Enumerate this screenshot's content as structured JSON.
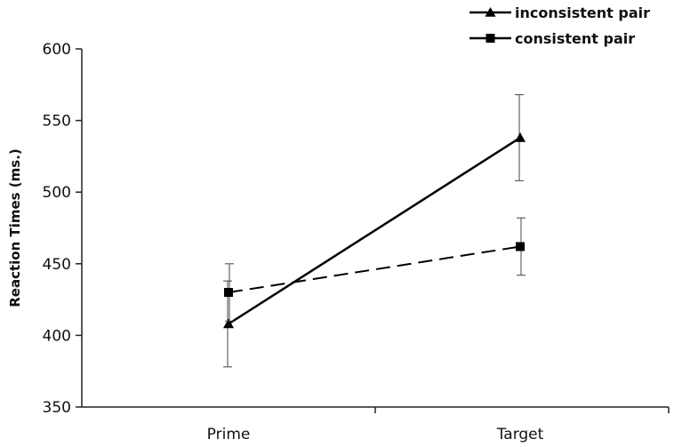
{
  "chart_data": {
    "type": "line",
    "title": "",
    "xlabel": "",
    "ylabel": "Reaction Times (ms.)",
    "categories": [
      "Prime",
      "Target"
    ],
    "ylim": [
      350,
      600
    ],
    "yticks": [
      350,
      400,
      450,
      500,
      550,
      600
    ],
    "grid": false,
    "legend_position": "top-right",
    "series": [
      {
        "name": "inconsistent pair",
        "marker": "triangle",
        "line_style": "solid",
        "color": "#000000",
        "values": [
          408,
          538
        ],
        "error": [
          30,
          30
        ]
      },
      {
        "name": "consistent pair",
        "marker": "square",
        "line_style": "dashed",
        "color": "#000000",
        "values": [
          430,
          462
        ],
        "error": [
          20,
          20
        ]
      }
    ]
  }
}
